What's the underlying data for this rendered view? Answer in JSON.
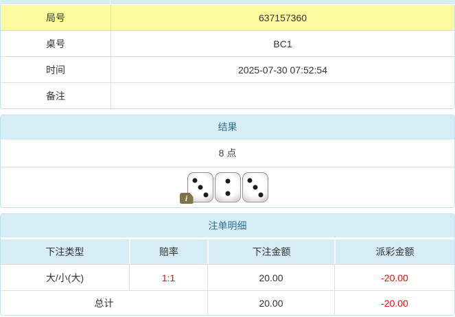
{
  "colors": {
    "panel_heading_bg": "#d6edf5",
    "panel_border": "#bfe2ee",
    "panel_title_text": "#31708f",
    "highlight_yellow": "#fcfc9e",
    "negative_red": "#fe0000",
    "body_text": "#333333",
    "row_divider": "#dddddd",
    "info_badge_olive": "#7d744a"
  },
  "info_table": {
    "rows": [
      {
        "label": "局号",
        "value": "637157360"
      },
      {
        "label": "桌号",
        "value": "BC1"
      },
      {
        "label": "时间",
        "value": "2025-07-30 07:52:54"
      },
      {
        "label": "备注",
        "value": ""
      }
    ]
  },
  "result_panel": {
    "title": "结果",
    "points": "8 点",
    "dice": [
      3,
      2,
      3
    ],
    "info_icon": "i"
  },
  "bet_panel": {
    "title": "注单明细",
    "columns": [
      "下注类型",
      "赔率",
      "下注金额",
      "派彩金额"
    ],
    "rows": [
      {
        "type": "大/小(大)",
        "odds": "1:1",
        "bet": "20.00",
        "payout": "-20.00"
      }
    ],
    "total": {
      "label": "总计",
      "bet": "20.00",
      "payout": "-20.00"
    }
  }
}
